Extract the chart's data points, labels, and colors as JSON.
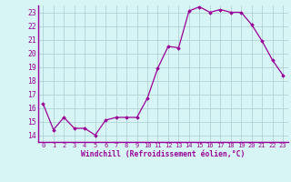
{
  "hours": [
    0,
    1,
    2,
    3,
    4,
    5,
    6,
    7,
    8,
    9,
    10,
    11,
    12,
    13,
    14,
    15,
    16,
    17,
    18,
    19,
    20,
    21,
    22,
    23
  ],
  "values": [
    16.3,
    14.4,
    15.3,
    14.5,
    14.5,
    14.0,
    15.1,
    15.3,
    15.3,
    15.3,
    16.7,
    18.9,
    20.5,
    20.4,
    23.1,
    23.4,
    23.0,
    23.2,
    23.0,
    23.0,
    22.1,
    20.9,
    19.5,
    18.4
  ],
  "xlabel": "Windchill (Refroidissement éolien,°C)",
  "ylim": [
    13.5,
    23.5
  ],
  "yticks": [
    14,
    15,
    16,
    17,
    18,
    19,
    20,
    21,
    22,
    23
  ],
  "xtick_labels": [
    "0",
    "1",
    "2",
    "3",
    "4",
    "5",
    "6",
    "7",
    "8",
    "9",
    "10",
    "11",
    "12",
    "13",
    "14",
    "15",
    "16",
    "17",
    "18",
    "19",
    "20",
    "21",
    "22",
    "23"
  ],
  "line_color": "#990099",
  "marker": "D",
  "marker_size": 1.8,
  "bg_color": "#d8f5f5",
  "grid_color": "#aacccc",
  "tick_color": "#990099",
  "label_color": "#990099",
  "font_family": "monospace",
  "xlim": [
    -0.5,
    23.5
  ],
  "xlabel_fontsize": 5.8,
  "xtick_fontsize": 5.0,
  "ytick_fontsize": 5.8
}
